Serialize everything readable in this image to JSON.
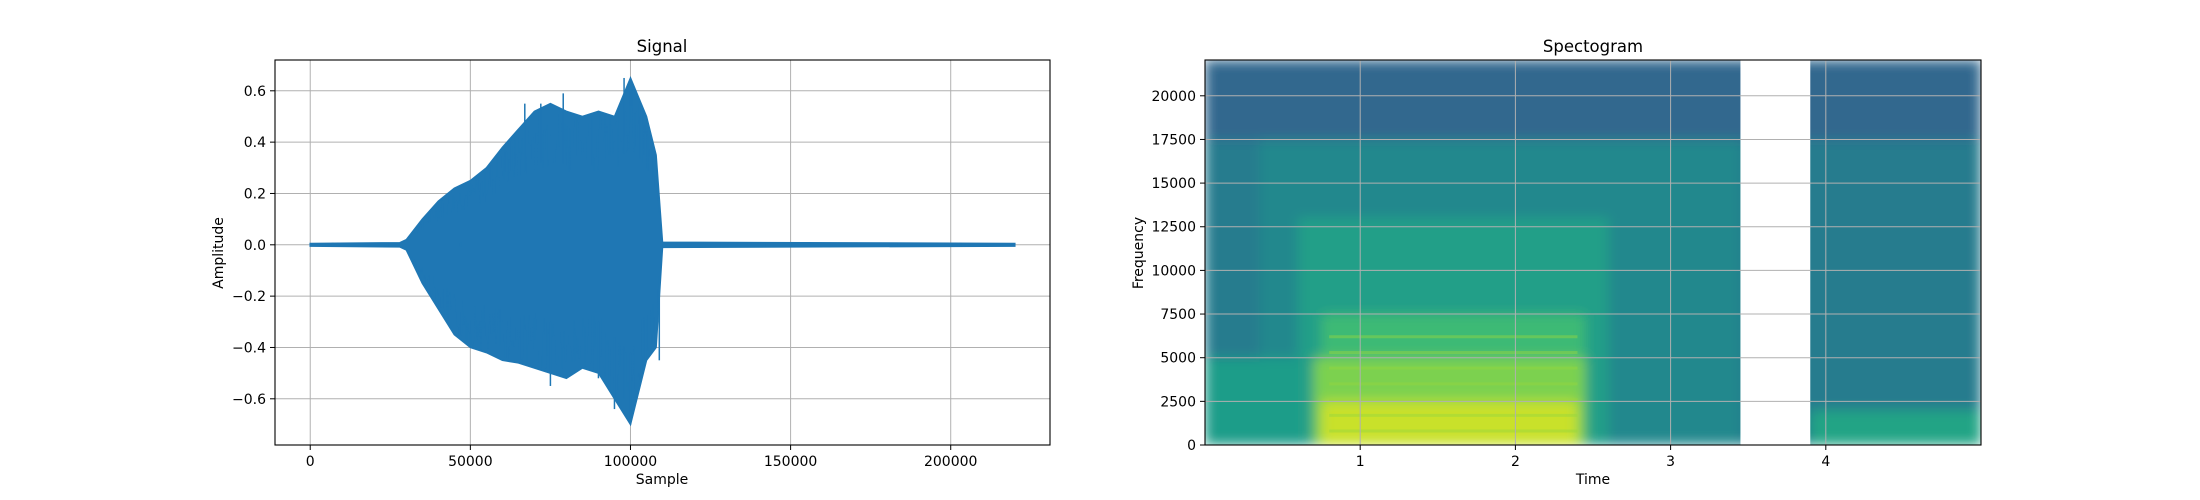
{
  "chart_data": [
    {
      "type": "line",
      "title": "Signal",
      "xlabel": "Sample",
      "ylabel": "Amplitude",
      "xlim": [
        -11000,
        231000
      ],
      "ylim": [
        -0.78,
        0.72
      ],
      "xticks": [
        0,
        50000,
        100000,
        150000,
        200000
      ],
      "xtick_labels": [
        "0",
        "50000",
        "100000",
        "150000",
        "200000"
      ],
      "yticks": [
        -0.6,
        -0.4,
        -0.2,
        0.0,
        0.2,
        0.4,
        0.6
      ],
      "ytick_labels": [
        "−0.6",
        "−0.4",
        "−0.2",
        "0.0",
        "0.2",
        "0.4",
        "0.6"
      ],
      "grid": true,
      "color": "#1f77b4",
      "series": [
        {
          "envelope": {
            "x": [
              0,
              28000,
              30000,
              35000,
              40000,
              45000,
              50000,
              55000,
              60000,
              65000,
              70000,
              75000,
              80000,
              85000,
              90000,
              95000,
              100000,
              105000,
              108000,
              110000,
              220000
            ],
            "upper": [
              0.005,
              0.008,
              0.02,
              0.1,
              0.17,
              0.22,
              0.25,
              0.3,
              0.38,
              0.45,
              0.52,
              0.55,
              0.52,
              0.5,
              0.52,
              0.5,
              0.65,
              0.5,
              0.35,
              0.01,
              0.005
            ],
            "lower": [
              -0.005,
              -0.008,
              -0.02,
              -0.15,
              -0.25,
              -0.35,
              -0.4,
              -0.42,
              -0.45,
              -0.46,
              -0.48,
              -0.5,
              -0.52,
              -0.48,
              -0.5,
              -0.6,
              -0.7,
              -0.45,
              -0.4,
              -0.01,
              -0.005
            ]
          },
          "spikes": [
            {
              "x": 67000,
              "y": 0.55
            },
            {
              "x": 72000,
              "y": 0.55
            },
            {
              "x": 79000,
              "y": 0.59
            },
            {
              "x": 88000,
              "y": 0.5
            },
            {
              "x": 98000,
              "y": 0.65
            },
            {
              "x": 103000,
              "y": 0.5
            },
            {
              "x": 75000,
              "y": -0.55
            },
            {
              "x": 90000,
              "y": -0.52
            },
            {
              "x": 95000,
              "y": -0.64
            },
            {
              "x": 98000,
              "y": -0.6
            },
            {
              "x": 100000,
              "y": -0.7
            },
            {
              "x": 109000,
              "y": -0.45
            }
          ]
        }
      ]
    },
    {
      "type": "heatmap",
      "title": "Spectogram",
      "xlabel": "Time",
      "ylabel": "Frequency",
      "xlim": [
        0,
        5.0
      ],
      "ylim": [
        0,
        22050
      ],
      "xticks": [
        1,
        2,
        3,
        4
      ],
      "xtick_labels": [
        "1",
        "2",
        "3",
        "4"
      ],
      "yticks": [
        0,
        2500,
        5000,
        7500,
        10000,
        12500,
        15000,
        17500,
        20000
      ],
      "ytick_labels": [
        "0",
        "2500",
        "5000",
        "7500",
        "10000",
        "12500",
        "15000",
        "17500",
        "20000"
      ],
      "grid": true,
      "colormap": "viridis",
      "gap": [
        3.45,
        3.9
      ],
      "regions": [
        {
          "t": [
            0,
            5.0
          ],
          "f": [
            17500,
            22050
          ],
          "level": 0.33
        },
        {
          "t": [
            0,
            5.0
          ],
          "f": [
            0,
            17500
          ],
          "level": 0.42
        },
        {
          "t": [
            0.35,
            3.45
          ],
          "f": [
            0,
            17500
          ],
          "level": 0.47
        },
        {
          "t": [
            0.6,
            2.6
          ],
          "f": [
            0,
            13000
          ],
          "level": 0.56
        },
        {
          "t": [
            0.75,
            2.45
          ],
          "f": [
            0,
            7500
          ],
          "level": 0.68
        },
        {
          "t": [
            0.7,
            2.45
          ],
          "f": [
            0,
            5000
          ],
          "level": 0.8
        },
        {
          "t": [
            0.75,
            2.4
          ],
          "f": [
            0,
            2500
          ],
          "level": 0.92
        },
        {
          "t": [
            0,
            0.6
          ],
          "f": [
            0,
            5000
          ],
          "level": 0.55
        },
        {
          "t": [
            3.9,
            5.0
          ],
          "f": [
            0,
            2000
          ],
          "level": 0.58
        }
      ]
    }
  ]
}
